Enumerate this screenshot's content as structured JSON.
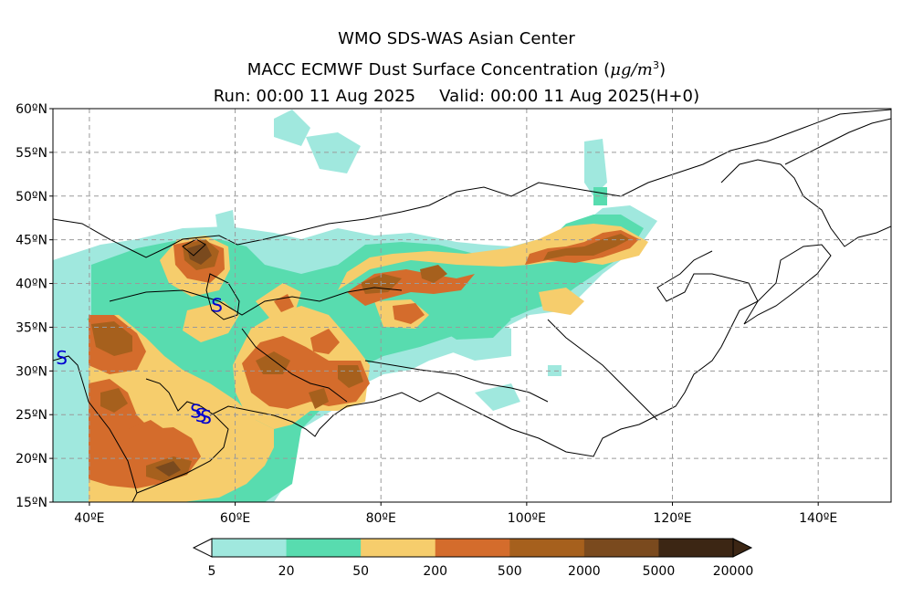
{
  "title": {
    "line1": "WMO SDS-WAS Asian Center",
    "line2_prefix": "MACC ECMWF Dust Surface Concentration (",
    "line2_unit_mu": "μ",
    "line2_unit_rest": "g/m",
    "line2_unit_exp": "3",
    "line2_suffix": ")",
    "run": "Run: 00:00 11 Aug 2025",
    "valid": "Valid: 00:00 11 Aug 2025(H+0)"
  },
  "map": {
    "lon_range": [
      35,
      150
    ],
    "lat_range": [
      15,
      60
    ],
    "lat_ticks": [
      {
        "value": 60,
        "label": "60ºN"
      },
      {
        "value": 55,
        "label": "55ºN"
      },
      {
        "value": 50,
        "label": "50ºN"
      },
      {
        "value": 45,
        "label": "45ºN"
      },
      {
        "value": 40,
        "label": "40ºN"
      },
      {
        "value": 35,
        "label": "35ºN"
      },
      {
        "value": 30,
        "label": "30ºN"
      },
      {
        "value": 25,
        "label": "25ºN"
      },
      {
        "value": 20,
        "label": "20ºN"
      },
      {
        "value": 15,
        "label": "15ºN"
      }
    ],
    "lon_ticks": [
      {
        "value": 40,
        "label": "40ºE"
      },
      {
        "value": 60,
        "label": "60ºE"
      },
      {
        "value": 80,
        "label": "80ºE"
      },
      {
        "value": 100,
        "label": "100ºE"
      },
      {
        "value": 120,
        "label": "120ºE"
      },
      {
        "value": 140,
        "label": "140ºE"
      }
    ],
    "grid": true
  },
  "colorbar": {
    "labels": [
      "5",
      "20",
      "50",
      "200",
      "500",
      "2000",
      "5000",
      "20000"
    ],
    "colors": [
      "#a0e8de",
      "#58dcaf",
      "#f6cd6c",
      "#d46c2c",
      "#a6601d",
      "#7a4a1e",
      "#3c2614"
    ]
  },
  "dust": {
    "colors": {
      "l1": "#a0e8de",
      "l2": "#58dcaf",
      "l3": "#f6cd6c",
      "l4": "#d46c2c",
      "l5": "#a6601d",
      "l6": "#7a4a1e"
    }
  },
  "marker": {
    "symbol": "S",
    "color": "#0000d0"
  }
}
